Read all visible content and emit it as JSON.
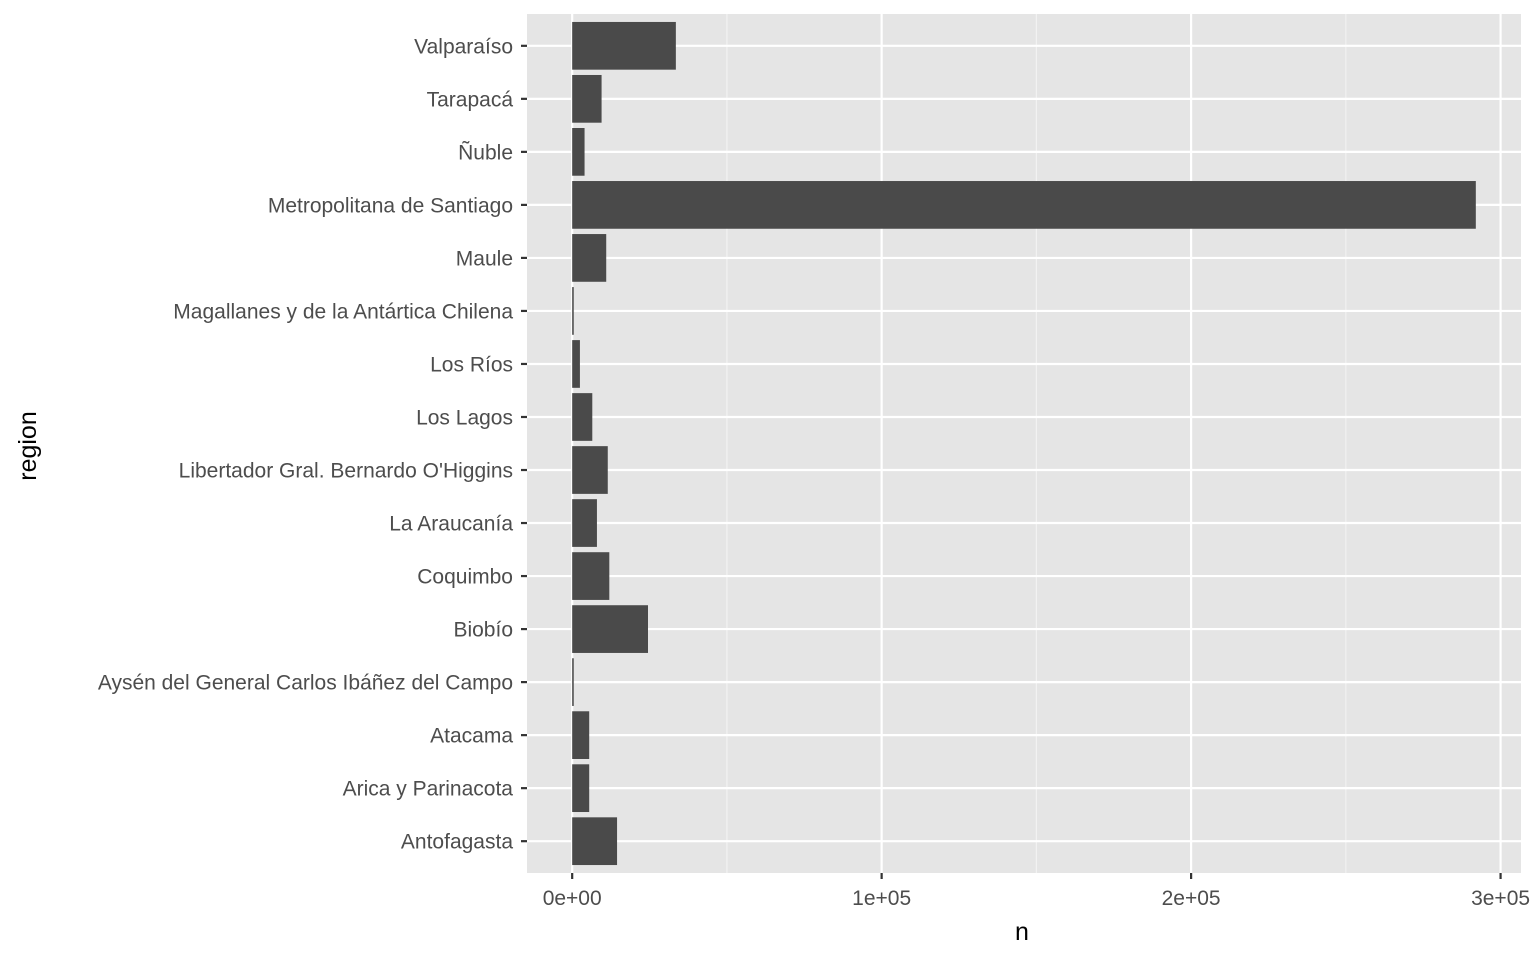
{
  "chart_data": {
    "type": "bar",
    "orientation": "horizontal",
    "categories": [
      "Antofagasta",
      "Arica y Parinacota",
      "Atacama",
      "Aysén del General Carlos Ibáñez del Campo",
      "Biobío",
      "Coquimbo",
      "La Araucanía",
      "Libertador Gral. Bernardo O'Higgins",
      "Los Lagos",
      "Los Ríos",
      "Magallanes y de la Antártica Chilena",
      "Maule",
      "Metropolitana de Santiago",
      "Ñuble",
      "Tarapacá",
      "Valparaíso"
    ],
    "values": [
      14500,
      5500,
      5500,
      500,
      24500,
      12000,
      8000,
      11500,
      6500,
      2500,
      500,
      11000,
      292000,
      4000,
      9500,
      33500
    ],
    "xlabel": "n",
    "ylabel": "region",
    "xlim": [
      -14600,
      306600
    ],
    "x_ticks": [
      0,
      100000,
      200000,
      300000
    ],
    "x_tick_labels": [
      "0e+00",
      "1e+05",
      "2e+05",
      "3e+05"
    ],
    "grid": true,
    "colors": {
      "bar": "#4a4a4a",
      "panel_background": "#e5e5e5",
      "grid_major": "#ffffff",
      "grid_minor": "#f2f2f2",
      "tick_mark": "#333333",
      "tick_label": "#4d4d4d",
      "axis_title": "#000000"
    }
  }
}
